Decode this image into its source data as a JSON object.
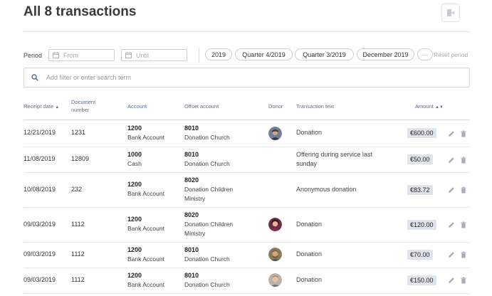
{
  "page": {
    "title": "All 8 transactions"
  },
  "filters": {
    "period_label": "Period",
    "from_placeholder": "From",
    "until_placeholder": "Until",
    "presets": [
      "2019",
      "Quarter 4/2019",
      "Quarter 3/2019",
      "December 2019"
    ],
    "more_label": "···",
    "reset_label": "Reset period"
  },
  "search": {
    "placeholder": "Add filter or enter search term"
  },
  "table": {
    "columns": {
      "receipt_date": "Receipt date",
      "document_number": "Document number",
      "account": "Account",
      "offset_account": "Offset account",
      "donor": "Donor",
      "transaction_text": "Transaction text",
      "amount": "Amount"
    },
    "sort_asc": "▲",
    "sort_both": "▲▼",
    "rows": [
      {
        "date": "12/21/2019",
        "doc": "1231",
        "acct_num": "1200",
        "acct_name": "Bank Account",
        "off_num": "8010",
        "off_name": "Donation Church",
        "donor_icon": "donor-avatar-1",
        "text": "Donation",
        "amount": "€600.00"
      },
      {
        "date": "11/08/2019",
        "doc": "12809",
        "acct_num": "1000",
        "acct_name": "Cash",
        "off_num": "8010",
        "off_name": "Donation Church",
        "donor_icon": "",
        "text": "Offering during service last sunday",
        "amount": "€50.00"
      },
      {
        "date": "10/08/2019",
        "doc": "232",
        "acct_num": "1200",
        "acct_name": "Bank Account",
        "off_num": "8020",
        "off_name": "Donation Children Ministry",
        "donor_icon": "",
        "text": "Anonymous donation",
        "amount": "€83.72"
      },
      {
        "date": "09/03/2019",
        "doc": "1112",
        "acct_num": "1200",
        "acct_name": "Bank Account",
        "off_num": "8020",
        "off_name": "Donation Children Ministry",
        "donor_icon": "donor-avatar-2",
        "text": "Donation",
        "amount": "€120.00"
      },
      {
        "date": "09/03/2019",
        "doc": "1112",
        "acct_num": "1200",
        "acct_name": "Bank Account",
        "off_num": "8010",
        "off_name": "Donation Church",
        "donor_icon": "donor-avatar-3",
        "text": "Donation",
        "amount": "€70.00"
      },
      {
        "date": "09/03/2019",
        "doc": "1112",
        "acct_num": "1200",
        "acct_name": "Bank Account",
        "off_num": "8010",
        "off_name": "Donation Church",
        "donor_icon": "donor-avatar-4",
        "text": "Donation",
        "amount": "€150.00"
      }
    ]
  },
  "colors": {
    "accent": "#5b6f8c",
    "amount_badge": "#dfe4ec"
  },
  "icons": {
    "export": "export-icon",
    "calendar": "calendar-icon",
    "search": "search-icon",
    "edit": "pencil-icon",
    "delete": "trash-icon"
  }
}
